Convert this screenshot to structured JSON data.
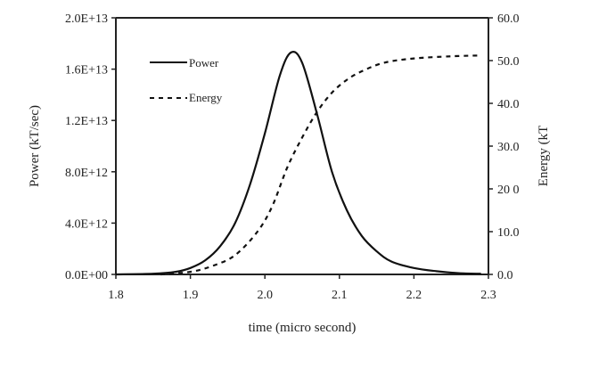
{
  "chart_data": {
    "type": "line",
    "xlabel": "time (micro second)",
    "ylabel_left": "Power (kT/sec)",
    "ylabel_right": "Energy (kT",
    "xlim": [
      1.8,
      2.3
    ],
    "ylim_left": [
      0,
      20000000000000.0
    ],
    "ylim_right": [
      0,
      60
    ],
    "grid": false,
    "legend_position": "top-left",
    "x_ticks": [
      "1.8",
      "1.9",
      "2.0",
      "2.1",
      "2.2",
      "2.3"
    ],
    "y_left_ticks": [
      "0.0E+00",
      "4.0E+12",
      "8.0E+12",
      "1.2E+13",
      "1.6E+13",
      "2.0E+13"
    ],
    "y_right_ticks": [
      "0.0",
      "10.0",
      "20 0",
      "30.0",
      "40.0",
      "50.0",
      "60.0"
    ],
    "series": [
      {
        "name": "Power",
        "axis": "left",
        "style": "solid",
        "x": [
          1.8,
          1.85,
          1.88,
          1.9,
          1.92,
          1.94,
          1.96,
          1.98,
          2.0,
          2.02,
          2.035,
          2.05,
          2.07,
          2.09,
          2.11,
          2.13,
          2.15,
          2.17,
          2.2,
          2.23,
          2.26,
          2.29
        ],
        "values": [
          0,
          50000000000.0,
          200000000000.0,
          500000000000.0,
          1100000000000.0,
          2200000000000.0,
          4000000000000.0,
          7000000000000.0,
          11000000000000.0,
          15500000000000.0,
          17300000000000.0,
          16500000000000.0,
          12500000000000.0,
          8000000000000.0,
          5000000000000.0,
          3000000000000.0,
          1800000000000.0,
          1000000000000.0,
          500000000000.0,
          250000000000.0,
          100000000000.0,
          50000000000.0
        ]
      },
      {
        "name": "Energy",
        "axis": "right",
        "style": "dashed",
        "x": [
          1.86,
          1.9,
          1.93,
          1.96,
          1.99,
          2.01,
          2.03,
          2.05,
          2.07,
          2.09,
          2.11,
          2.13,
          2.16,
          2.2,
          2.25,
          2.29
        ],
        "values": [
          0,
          0.6,
          2.0,
          4.5,
          10.0,
          16.0,
          25.0,
          32.0,
          38.0,
          42.5,
          45.5,
          47.5,
          49.5,
          50.5,
          51.0,
          51.2
        ]
      }
    ]
  }
}
